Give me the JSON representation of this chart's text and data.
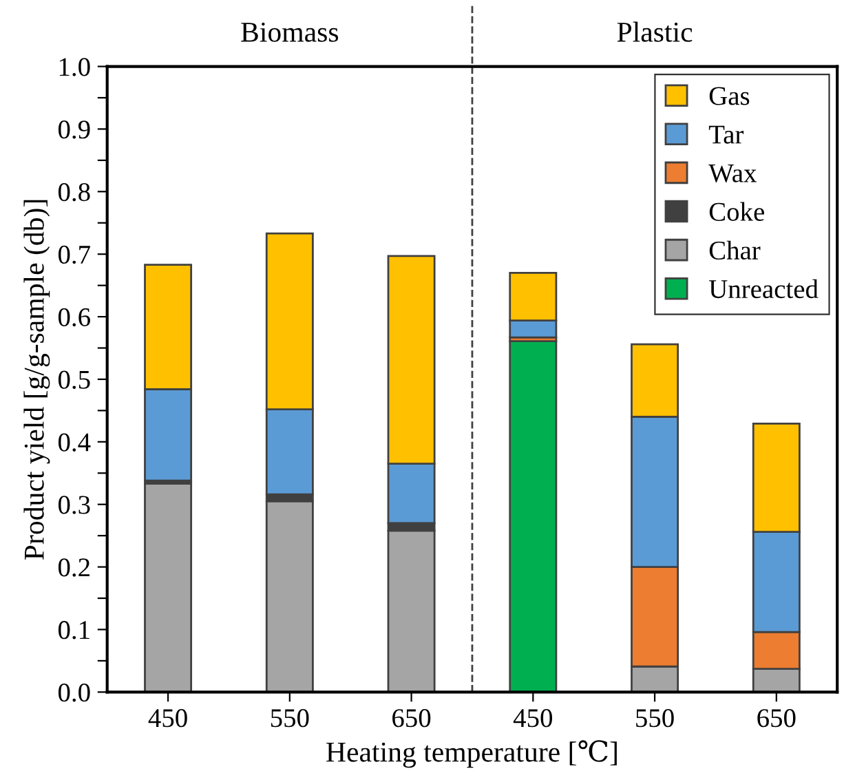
{
  "chart_data": {
    "type": "bar",
    "stacked": true,
    "xlabel": "Heating temperature [℃]",
    "ylabel": "Product yield [g/g-sample (db)]",
    "categories": [
      "450",
      "550",
      "650",
      "450",
      "550",
      "650"
    ],
    "series": [
      {
        "name": "Unreacted",
        "color": "#00b050",
        "values": [
          0,
          0,
          0,
          0.561,
          0,
          0
        ]
      },
      {
        "name": "Char",
        "color": "#a5a5a5",
        "values": [
          0.333,
          0.305,
          0.258,
          0,
          0.041,
          0.037
        ]
      },
      {
        "name": "Coke",
        "color": "#404040",
        "values": [
          0.005,
          0.011,
          0.012,
          0,
          0,
          0
        ]
      },
      {
        "name": "Wax",
        "color": "#ed7d31",
        "values": [
          0,
          0,
          0,
          0.006,
          0.159,
          0.059
        ]
      },
      {
        "name": "Tar",
        "color": "#5b9bd5",
        "values": [
          0.146,
          0.136,
          0.095,
          0.027,
          0.24,
          0.16
        ]
      },
      {
        "name": "Gas",
        "color": "#ffc000",
        "values": [
          0.199,
          0.281,
          0.332,
          0.076,
          0.116,
          0.173
        ]
      }
    ],
    "ylim": [
      0,
      1.0
    ],
    "yticks": [
      {
        "value": 0,
        "label": "0.0"
      },
      {
        "value": 0.05,
        "label": null
      },
      {
        "value": 0.1,
        "label": "0.1"
      },
      {
        "value": 0.15,
        "label": null
      },
      {
        "value": 0.2,
        "label": "0.2"
      },
      {
        "value": 0.25,
        "label": null
      },
      {
        "value": 0.3,
        "label": "0.3"
      },
      {
        "value": 0.35,
        "label": null
      },
      {
        "value": 0.4,
        "label": "0.4"
      },
      {
        "value": 0.45,
        "label": null
      },
      {
        "value": 0.5,
        "label": "0.5"
      },
      {
        "value": 0.55,
        "label": null
      },
      {
        "value": 0.6,
        "label": "0.6"
      },
      {
        "value": 0.65,
        "label": null
      },
      {
        "value": 0.7,
        "label": "0.7"
      },
      {
        "value": 0.75,
        "label": null
      },
      {
        "value": 0.8,
        "label": "0.8"
      },
      {
        "value": 0.85,
        "label": null
      },
      {
        "value": 0.9,
        "label": "0.9"
      },
      {
        "value": 0.95,
        "label": null
      },
      {
        "value": 1.0,
        "label": "1.0"
      }
    ],
    "annotations": [
      "Biomass",
      "Plastic"
    ],
    "grid": false,
    "legend": "top right"
  }
}
